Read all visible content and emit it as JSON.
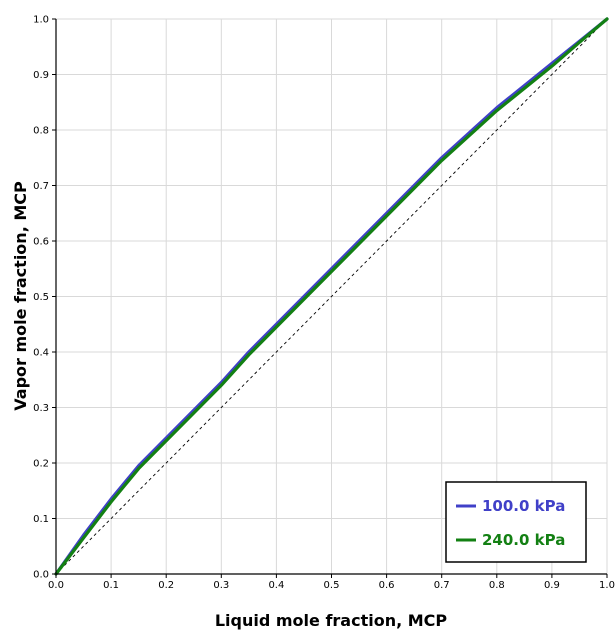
{
  "chart_data": {
    "type": "line",
    "title": "",
    "xlabel": "Liquid mole fraction, MCP",
    "ylabel": "Vapor mole fraction, MCP",
    "xlim": [
      0,
      1
    ],
    "ylim": [
      0,
      1
    ],
    "x_ticks": [
      "0.0",
      "0.1",
      "0.2",
      "0.3",
      "0.4",
      "0.5",
      "0.6",
      "0.7",
      "0.8",
      "0.9",
      "1.0"
    ],
    "y_ticks": [
      "0.0",
      "0.1",
      "0.2",
      "0.3",
      "0.4",
      "0.5",
      "0.6",
      "0.7",
      "0.8",
      "0.9",
      "1.0"
    ],
    "grid": true,
    "legend_position": "bottom-right",
    "reference_line": {
      "x": [
        0,
        1
      ],
      "y": [
        0,
        1
      ],
      "style": "dashed",
      "color": "#000000"
    },
    "x": [
      0.0,
      0.05,
      0.1,
      0.15,
      0.2,
      0.25,
      0.3,
      0.35,
      0.4,
      0.45,
      0.5,
      0.55,
      0.6,
      0.65,
      0.7,
      0.75,
      0.8,
      0.85,
      0.9,
      0.95,
      1.0
    ],
    "series": [
      {
        "name": "100.0 kPa",
        "color": "#4040c8",
        "values": [
          0.0,
          0.07,
          0.135,
          0.195,
          0.245,
          0.295,
          0.345,
          0.4,
          0.45,
          0.5,
          0.55,
          0.6,
          0.65,
          0.7,
          0.75,
          0.795,
          0.84,
          0.88,
          0.92,
          0.96,
          1.0
        ]
      },
      {
        "name": "240.0 kPa",
        "color": "#138013",
        "values": [
          0.0,
          0.065,
          0.13,
          0.19,
          0.24,
          0.29,
          0.34,
          0.395,
          0.445,
          0.495,
          0.545,
          0.595,
          0.645,
          0.695,
          0.745,
          0.79,
          0.835,
          0.875,
          0.915,
          0.958,
          1.0
        ]
      }
    ]
  }
}
